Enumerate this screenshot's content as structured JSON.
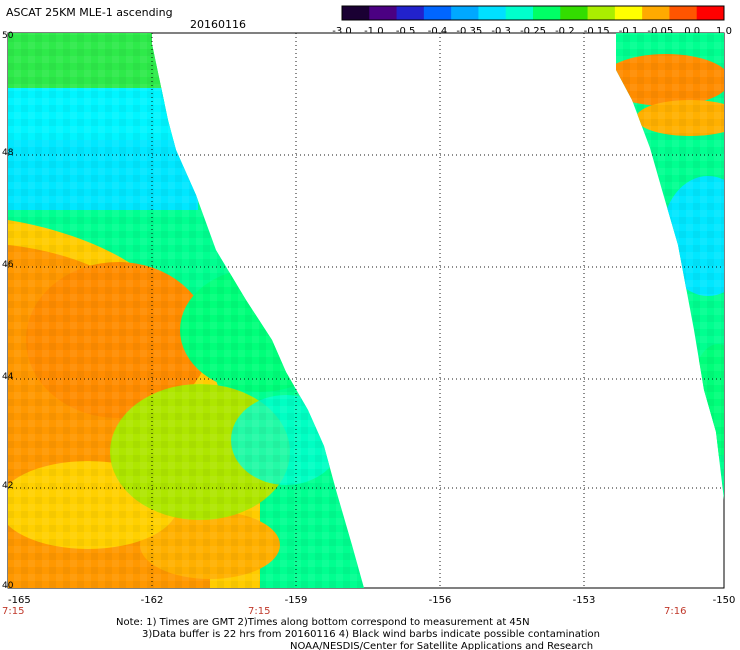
{
  "title": "ASCAT 25KM MLE-1 ascending",
  "date": "20160116",
  "colorbar": {
    "labels": [
      "-3.0",
      "-1.0",
      "-0.5",
      "-0.4",
      "-0.35",
      "-0.3",
      "-0.25",
      "-0.2",
      "-0.15",
      "-0.1",
      "-0.05",
      "0.0",
      "1.0"
    ],
    "colors": [
      "#1a0033",
      "#4b0082",
      "#2222cc",
      "#0066ff",
      "#00a8ff",
      "#00e0ff",
      "#00ffcc",
      "#00ff66",
      "#33dd00",
      "#aaee00",
      "#ffff00",
      "#ffaa00",
      "#ff5500",
      "#ff0000"
    ]
  },
  "axes": {
    "lon_ticks": [
      "-165",
      "-162",
      "-159",
      "-156",
      "-153",
      "-150"
    ],
    "lat_ticks": [
      "50",
      "48",
      "46",
      "44",
      "42",
      "40"
    ],
    "time_labels": [
      "7:15",
      "7:15",
      "7:16"
    ]
  },
  "notes": {
    "line1": "Note: 1) Times are GMT 2)Times along bottom correspond to measurement at 45N",
    "line2": "3)Data buffer is 22 hrs from 20160116 4) Black wind barbs indicate possible contamination",
    "line3": "NOAA/NESDIS/Center for Satellite Applications and Research"
  },
  "map_data": {
    "lon_range": [
      -165,
      -150
    ],
    "lat_range": [
      40,
      50
    ],
    "gridlines": "dotted",
    "swaths": [
      "left swath from -165 to about -158.5",
      "right swath from about -151 to -150"
    ]
  }
}
